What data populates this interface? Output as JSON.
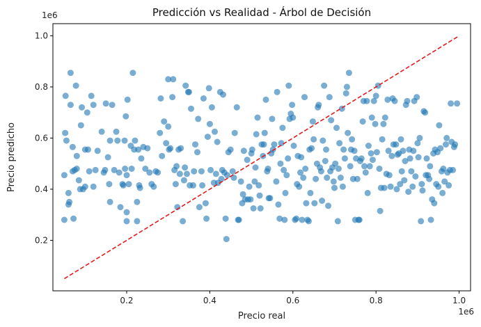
{
  "chart_data": {
    "type": "scatter",
    "title": "Predicción vs Realidad - Árbol de Decisión",
    "xlabel": "Precio real",
    "ylabel": "Precio predicho",
    "x_multiplier": "1e6",
    "y_multiplier": "1e6",
    "xlim": [
      0.0225,
      1.0275
    ],
    "ylim": [
      0.0025,
      1.0475
    ],
    "xticks": [
      0.2,
      0.4,
      0.6,
      0.8,
      1.0
    ],
    "xtick_labels": [
      "0.2",
      "0.4",
      "0.6",
      "0.8",
      "1.0"
    ],
    "yticks": [
      0.2,
      0.4,
      0.6,
      0.8,
      1.0
    ],
    "ytick_labels": [
      "0.2",
      "0.4",
      "0.6",
      "0.8",
      "1.0"
    ],
    "grid": false,
    "point_color": "#1f77b4",
    "point_alpha": 0.6,
    "reference_line": {
      "x": [
        0.05,
        1.0
      ],
      "y": [
        0.05,
        1.0
      ],
      "color": "#e31a1c",
      "style": "dashed"
    },
    "points": [
      [
        0.05,
        0.455
      ],
      [
        0.052,
        0.62
      ],
      [
        0.055,
        0.59
      ],
      [
        0.05,
        0.28
      ],
      [
        0.053,
        0.765
      ],
      [
        0.06,
        0.34
      ],
      [
        0.06,
        0.385
      ],
      [
        0.062,
        0.35
      ],
      [
        0.065,
        0.73
      ],
      [
        0.065,
        0.855
      ],
      [
        0.07,
        0.47
      ],
      [
        0.07,
        0.565
      ],
      [
        0.072,
        0.285
      ],
      [
        0.075,
        0.475
      ],
      [
        0.078,
        0.805
      ],
      [
        0.08,
        0.48
      ],
      [
        0.08,
        0.53
      ],
      [
        0.085,
        0.435
      ],
      [
        0.088,
        0.4
      ],
      [
        0.09,
        0.65
      ],
      [
        0.092,
        0.72
      ],
      [
        0.095,
        0.4
      ],
      [
        0.1,
        0.41
      ],
      [
        0.1,
        0.555
      ],
      [
        0.105,
        0.7
      ],
      [
        0.107,
        0.555
      ],
      [
        0.11,
        0.47
      ],
      [
        0.115,
        0.765
      ],
      [
        0.12,
        0.73
      ],
      [
        0.12,
        0.41
      ],
      [
        0.125,
        0.475
      ],
      [
        0.13,
        0.55
      ],
      [
        0.14,
        0.625
      ],
      [
        0.145,
        0.465
      ],
      [
        0.148,
        0.475
      ],
      [
        0.15,
        0.735
      ],
      [
        0.155,
        0.525
      ],
      [
        0.158,
        0.42
      ],
      [
        0.16,
        0.59
      ],
      [
        0.16,
        0.35
      ],
      [
        0.165,
        0.73
      ],
      [
        0.17,
        0.475
      ],
      [
        0.175,
        0.625
      ],
      [
        0.178,
        0.59
      ],
      [
        0.182,
        0.465
      ],
      [
        0.185,
        0.33
      ],
      [
        0.19,
        0.42
      ],
      [
        0.192,
        0.415
      ],
      [
        0.195,
        0.59
      ],
      [
        0.196,
        0.48
      ],
      [
        0.198,
        0.685
      ],
      [
        0.2,
        0.455
      ],
      [
        0.2,
        0.31
      ],
      [
        0.2,
        0.275
      ],
      [
        0.202,
        0.75
      ],
      [
        0.205,
        0.42
      ],
      [
        0.21,
        0.57
      ],
      [
        0.212,
        0.48
      ],
      [
        0.215,
        0.855
      ],
      [
        0.218,
        0.555
      ],
      [
        0.22,
        0.59
      ],
      [
        0.225,
        0.35
      ],
      [
        0.225,
        0.275
      ],
      [
        0.228,
        0.555
      ],
      [
        0.23,
        0.415
      ],
      [
        0.232,
        0.405
      ],
      [
        0.235,
        0.52
      ],
      [
        0.24,
        0.565
      ],
      [
        0.245,
        0.48
      ],
      [
        0.25,
        0.56
      ],
      [
        0.255,
        0.465
      ],
      [
        0.26,
        0.42
      ],
      [
        0.265,
        0.41
      ],
      [
        0.27,
        0.47
      ],
      [
        0.275,
        0.465
      ],
      [
        0.28,
        0.62
      ],
      [
        0.282,
        0.755
      ],
      [
        0.285,
        0.53
      ],
      [
        0.29,
        0.665
      ],
      [
        0.295,
        0.58
      ],
      [
        0.3,
        0.645
      ],
      [
        0.3,
        0.83
      ],
      [
        0.302,
        0.555
      ],
      [
        0.305,
        0.56
      ],
      [
        0.31,
        0.76
      ],
      [
        0.312,
        0.83
      ],
      [
        0.315,
        0.475
      ],
      [
        0.318,
        0.42
      ],
      [
        0.32,
        0.49
      ],
      [
        0.322,
        0.33
      ],
      [
        0.325,
        0.555
      ],
      [
        0.328,
        0.46
      ],
      [
        0.33,
        0.56
      ],
      [
        0.335,
        0.275
      ],
      [
        0.338,
        0.435
      ],
      [
        0.34,
        0.485
      ],
      [
        0.342,
        0.805
      ],
      [
        0.345,
        0.46
      ],
      [
        0.348,
        0.78
      ],
      [
        0.35,
        0.78
      ],
      [
        0.352,
        0.415
      ],
      [
        0.355,
        0.715
      ],
      [
        0.36,
        0.415
      ],
      [
        0.362,
        0.47
      ],
      [
        0.365,
        0.575
      ],
      [
        0.37,
        0.545
      ],
      [
        0.372,
        0.675
      ],
      [
        0.375,
        0.33
      ],
      [
        0.38,
        0.47
      ],
      [
        0.382,
        0.415
      ],
      [
        0.385,
        0.755
      ],
      [
        0.39,
        0.345
      ],
      [
        0.392,
        0.285
      ],
      [
        0.395,
        0.605
      ],
      [
        0.398,
        0.795
      ],
      [
        0.4,
        0.655
      ],
      [
        0.402,
        0.475
      ],
      [
        0.405,
        0.72
      ],
      [
        0.41,
        0.425
      ],
      [
        0.412,
        0.625
      ],
      [
        0.415,
        0.46
      ],
      [
        0.418,
        0.585
      ],
      [
        0.42,
        0.425
      ],
      [
        0.425,
        0.78
      ],
      [
        0.428,
        0.44
      ],
      [
        0.43,
        0.475
      ],
      [
        0.432,
        0.77
      ],
      [
        0.435,
        0.465
      ],
      [
        0.438,
        0.285
      ],
      [
        0.44,
        0.205
      ],
      [
        0.442,
        0.455
      ],
      [
        0.445,
        0.545
      ],
      [
        0.45,
        0.555
      ],
      [
        0.455,
        0.47
      ],
      [
        0.458,
        0.445
      ],
      [
        0.46,
        0.62
      ],
      [
        0.465,
        0.72
      ],
      [
        0.468,
        0.28
      ],
      [
        0.47,
        0.28
      ],
      [
        0.475,
        0.43
      ],
      [
        0.478,
        0.345
      ],
      [
        0.48,
        0.38
      ],
      [
        0.482,
        0.55
      ],
      [
        0.485,
        0.36
      ],
      [
        0.49,
        0.515
      ],
      [
        0.492,
        0.36
      ],
      [
        0.495,
        0.41
      ],
      [
        0.498,
        0.36
      ],
      [
        0.5,
        0.54
      ],
      [
        0.502,
        0.555
      ],
      [
        0.505,
        0.325
      ],
      [
        0.508,
        0.43
      ],
      [
        0.51,
        0.485
      ],
      [
        0.512,
        0.615
      ],
      [
        0.515,
        0.68
      ],
      [
        0.518,
        0.415
      ],
      [
        0.52,
        0.375
      ],
      [
        0.522,
        0.325
      ],
      [
        0.525,
        0.575
      ],
      [
        0.528,
        0.53
      ],
      [
        0.53,
        0.575
      ],
      [
        0.532,
        0.62
      ],
      [
        0.535,
        0.75
      ],
      [
        0.538,
        0.47
      ],
      [
        0.54,
        0.48
      ],
      [
        0.542,
        0.365
      ],
      [
        0.545,
        0.365
      ],
      [
        0.548,
        0.54
      ],
      [
        0.55,
        0.675
      ],
      [
        0.552,
        0.555
      ],
      [
        0.555,
        0.575
      ],
      [
        0.56,
        0.43
      ],
      [
        0.562,
        0.78
      ],
      [
        0.565,
        0.34
      ],
      [
        0.568,
        0.285
      ],
      [
        0.57,
        0.5
      ],
      [
        0.572,
        0.58
      ],
      [
        0.575,
        0.64
      ],
      [
        0.578,
        0.475
      ],
      [
        0.58,
        0.28
      ],
      [
        0.582,
        0.385
      ],
      [
        0.585,
        0.455
      ],
      [
        0.588,
        0.52
      ],
      [
        0.59,
        0.805
      ],
      [
        0.592,
        0.675
      ],
      [
        0.595,
        0.695
      ],
      [
        0.598,
        0.73
      ],
      [
        0.6,
        0.68
      ],
      [
        0.602,
        0.57
      ],
      [
        0.605,
        0.28
      ],
      [
        0.608,
        0.285
      ],
      [
        0.61,
        0.42
      ],
      [
        0.612,
        0.53
      ],
      [
        0.615,
        0.41
      ],
      [
        0.618,
        0.465
      ],
      [
        0.62,
        0.525
      ],
      [
        0.622,
        0.28
      ],
      [
        0.625,
        0.445
      ],
      [
        0.628,
        0.76
      ],
      [
        0.63,
        0.48
      ],
      [
        0.632,
        0.345
      ],
      [
        0.635,
        0.28
      ],
      [
        0.638,
        0.275
      ],
      [
        0.64,
        0.555
      ],
      [
        0.642,
        0.385
      ],
      [
        0.645,
        0.56
      ],
      [
        0.648,
        0.665
      ],
      [
        0.65,
        0.595
      ],
      [
        0.652,
        0.345
      ],
      [
        0.655,
        0.44
      ],
      [
        0.658,
        0.5
      ],
      [
        0.66,
        0.72
      ],
      [
        0.662,
        0.73
      ],
      [
        0.665,
        0.485
      ],
      [
        0.668,
        0.47
      ],
      [
        0.67,
        0.355
      ],
      [
        0.672,
        0.59
      ],
      [
        0.675,
        0.805
      ],
      [
        0.678,
        0.51
      ],
      [
        0.68,
        0.555
      ],
      [
        0.682,
        0.445
      ],
      [
        0.685,
        0.335
      ],
      [
        0.688,
        0.76
      ],
      [
        0.69,
        0.47
      ],
      [
        0.692,
        0.67
      ],
      [
        0.695,
        0.485
      ],
      [
        0.698,
        0.43
      ],
      [
        0.7,
        0.405
      ],
      [
        0.702,
        0.5
      ],
      [
        0.705,
        0.64
      ],
      [
        0.708,
        0.275
      ],
      [
        0.71,
        0.48
      ],
      [
        0.712,
        0.58
      ],
      [
        0.715,
        0.445
      ],
      [
        0.718,
        0.715
      ],
      [
        0.72,
        0.41
      ],
      [
        0.722,
        0.555
      ],
      [
        0.725,
        0.52
      ],
      [
        0.728,
        0.775
      ],
      [
        0.73,
        0.8
      ],
      [
        0.732,
        0.62
      ],
      [
        0.735,
        0.855
      ],
      [
        0.738,
        0.49
      ],
      [
        0.74,
        0.555
      ],
      [
        0.742,
        0.595
      ],
      [
        0.745,
        0.44
      ],
      [
        0.748,
        0.55
      ],
      [
        0.75,
        0.28
      ],
      [
        0.752,
        0.52
      ],
      [
        0.755,
        0.44
      ],
      [
        0.758,
        0.28
      ],
      [
        0.76,
        0.28
      ],
      [
        0.762,
        0.51
      ],
      [
        0.765,
        0.52
      ],
      [
        0.768,
        0.665
      ],
      [
        0.77,
        0.745
      ],
      [
        0.772,
        0.49
      ],
      [
        0.775,
        0.465
      ],
      [
        0.778,
        0.745
      ],
      [
        0.78,
        0.385
      ],
      [
        0.782,
        0.57
      ],
      [
        0.785,
        0.49
      ],
      [
        0.788,
        0.54
      ],
      [
        0.79,
        0.68
      ],
      [
        0.792,
        0.515
      ],
      [
        0.795,
        0.745
      ],
      [
        0.798,
        0.655
      ],
      [
        0.8,
        0.765
      ],
      [
        0.802,
        0.545
      ],
      [
        0.805,
        0.805
      ],
      [
        0.808,
        0.48
      ],
      [
        0.81,
        0.315
      ],
      [
        0.812,
        0.405
      ],
      [
        0.815,
        0.595
      ],
      [
        0.818,
        0.655
      ],
      [
        0.82,
        0.405
      ],
      [
        0.822,
        0.68
      ],
      [
        0.825,
        0.46
      ],
      [
        0.828,
        0.75
      ],
      [
        0.83,
        0.55
      ],
      [
        0.832,
        0.455
      ],
      [
        0.835,
        0.41
      ],
      [
        0.838,
        0.53
      ],
      [
        0.84,
        0.755
      ],
      [
        0.842,
        0.575
      ],
      [
        0.845,
        0.745
      ],
      [
        0.848,
        0.575
      ],
      [
        0.85,
        0.4
      ],
      [
        0.852,
        0.535
      ],
      [
        0.855,
        0.54
      ],
      [
        0.858,
        0.42
      ],
      [
        0.86,
        0.595
      ],
      [
        0.862,
        0.47
      ],
      [
        0.865,
        0.55
      ],
      [
        0.868,
        0.435
      ],
      [
        0.87,
        0.51
      ],
      [
        0.872,
        0.73
      ],
      [
        0.875,
        0.745
      ],
      [
        0.878,
        0.39
      ],
      [
        0.88,
        0.555
      ],
      [
        0.882,
        0.52
      ],
      [
        0.885,
        0.47
      ],
      [
        0.888,
        0.41
      ],
      [
        0.89,
        0.55
      ],
      [
        0.892,
        0.745
      ],
      [
        0.895,
        0.45
      ],
      [
        0.898,
        0.76
      ],
      [
        0.9,
        0.58
      ],
      [
        0.902,
        0.525
      ],
      [
        0.905,
        0.6
      ],
      [
        0.908,
        0.275
      ],
      [
        0.91,
        0.42
      ],
      [
        0.912,
        0.395
      ],
      [
        0.915,
        0.705
      ],
      [
        0.918,
        0.7
      ],
      [
        0.92,
        0.455
      ],
      [
        0.922,
        0.52
      ],
      [
        0.925,
        0.455
      ],
      [
        0.928,
        0.44
      ],
      [
        0.93,
        0.49
      ],
      [
        0.932,
        0.28
      ],
      [
        0.935,
        0.36
      ],
      [
        0.938,
        0.54
      ],
      [
        0.94,
        0.345
      ],
      [
        0.942,
        0.555
      ],
      [
        0.945,
        0.42
      ],
      [
        0.948,
        0.545
      ],
      [
        0.95,
        0.41
      ],
      [
        0.952,
        0.65
      ],
      [
        0.955,
        0.56
      ],
      [
        0.958,
        0.47
      ],
      [
        0.96,
        0.385
      ],
      [
        0.962,
        0.48
      ],
      [
        0.965,
        0.43
      ],
      [
        0.968,
        0.575
      ],
      [
        0.97,
        0.6
      ],
      [
        0.972,
        0.465
      ],
      [
        0.975,
        0.415
      ],
      [
        0.978,
        0.475
      ],
      [
        0.98,
        0.735
      ],
      [
        0.982,
        0.585
      ],
      [
        0.985,
        0.475
      ],
      [
        0.988,
        0.565
      ],
      [
        0.99,
        0.575
      ],
      [
        0.995,
        0.735
      ]
    ]
  }
}
